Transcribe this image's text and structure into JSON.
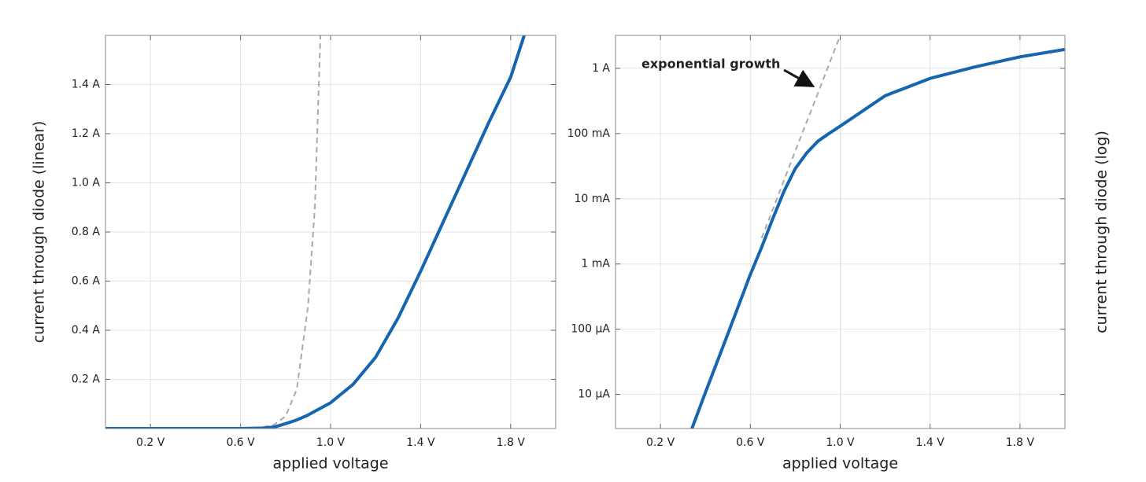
{
  "chart_data": [
    {
      "type": "line",
      "xlabel": "applied voltage",
      "ylabel": "current through diode (linear)",
      "xlim": [
        0,
        2
      ],
      "ylim": [
        0,
        1.6
      ],
      "xticks": [
        {
          "value": 0.2,
          "label": "0.2 V"
        },
        {
          "value": 0.6,
          "label": "0.6 V"
        },
        {
          "value": 1.0,
          "label": "1.0 V"
        },
        {
          "value": 1.4,
          "label": "1.4 V"
        },
        {
          "value": 1.8,
          "label": "1.8 V"
        }
      ],
      "yticks": [
        {
          "value": 0.2,
          "label": "0.2 A"
        },
        {
          "value": 0.4,
          "label": "0.4 A"
        },
        {
          "value": 0.6,
          "label": "0.6 A"
        },
        {
          "value": 0.8,
          "label": "0.8 A"
        },
        {
          "value": 1.0,
          "label": "1.0 A"
        },
        {
          "value": 1.2,
          "label": "1.2 A"
        },
        {
          "value": 1.4,
          "label": "1.4 A"
        }
      ],
      "grid": true,
      "yscale": "linear",
      "series": [
        {
          "color": "#aaaaaa",
          "style": "dashed",
          "x": [
            0.7,
            0.75,
            0.8,
            0.85,
            0.9,
            0.93,
            0.955
          ],
          "values": [
            0.005,
            0.016,
            0.05,
            0.16,
            0.5,
            0.9,
            1.6
          ]
        },
        {
          "color": "#1565b0",
          "style": "solid",
          "x": [
            0,
            0.2,
            0.4,
            0.6,
            0.7,
            0.75,
            0.8,
            0.85,
            0.9,
            0.95,
            1.0,
            1.1,
            1.2,
            1.3,
            1.4,
            1.5,
            1.6,
            1.7,
            1.8,
            1.86
          ],
          "values": [
            0,
            0,
            0,
            0,
            0.002,
            0.006,
            0.02,
            0.035,
            0.055,
            0.08,
            0.105,
            0.18,
            0.29,
            0.45,
            0.64,
            0.84,
            1.04,
            1.24,
            1.43,
            1.6
          ]
        }
      ]
    },
    {
      "type": "line",
      "xlabel": "applied voltage",
      "ylabel": "current through diode (log)",
      "annotation": "exponential growth",
      "xlim": [
        0,
        2
      ],
      "ylim": [
        3e-06,
        3.2
      ],
      "xticks": [
        {
          "value": 0.2,
          "label": "0.2 V"
        },
        {
          "value": 0.6,
          "label": "0.6 V"
        },
        {
          "value": 1.0,
          "label": "1.0 V"
        },
        {
          "value": 1.4,
          "label": "1.4 V"
        },
        {
          "value": 1.8,
          "label": "1.8 V"
        }
      ],
      "yticks": [
        {
          "value": 1e-05,
          "label": "10 µA"
        },
        {
          "value": 0.0001,
          "label": "100 µA"
        },
        {
          "value": 0.001,
          "label": "1 mA"
        },
        {
          "value": 0.01,
          "label": "10 mA"
        },
        {
          "value": 0.1,
          "label": "100 mA"
        },
        {
          "value": 1,
          "label": "1 A"
        }
      ],
      "grid": true,
      "yscale": "log",
      "series": [
        {
          "color": "#aaaaaa",
          "style": "dashed",
          "x": [
            0.65,
            0.7,
            0.8,
            0.9,
            1.0
          ],
          "values": [
            0.0025,
            0.0069,
            0.054,
            0.41,
            3.2
          ]
        },
        {
          "color": "#1565b0",
          "style": "solid",
          "x": [
            0.34,
            0.4,
            0.5,
            0.6,
            0.65,
            0.7,
            0.75,
            0.8,
            0.85,
            0.9,
            0.95,
            1.0,
            1.2,
            1.4,
            1.6,
            1.8,
            2.0
          ],
          "values": [
            3e-06,
            1.07e-05,
            8.5e-05,
            0.00069,
            0.0018,
            0.005,
            0.013,
            0.029,
            0.05,
            0.076,
            0.1,
            0.13,
            0.38,
            0.7,
            1.05,
            1.5,
            1.95
          ]
        }
      ]
    }
  ]
}
